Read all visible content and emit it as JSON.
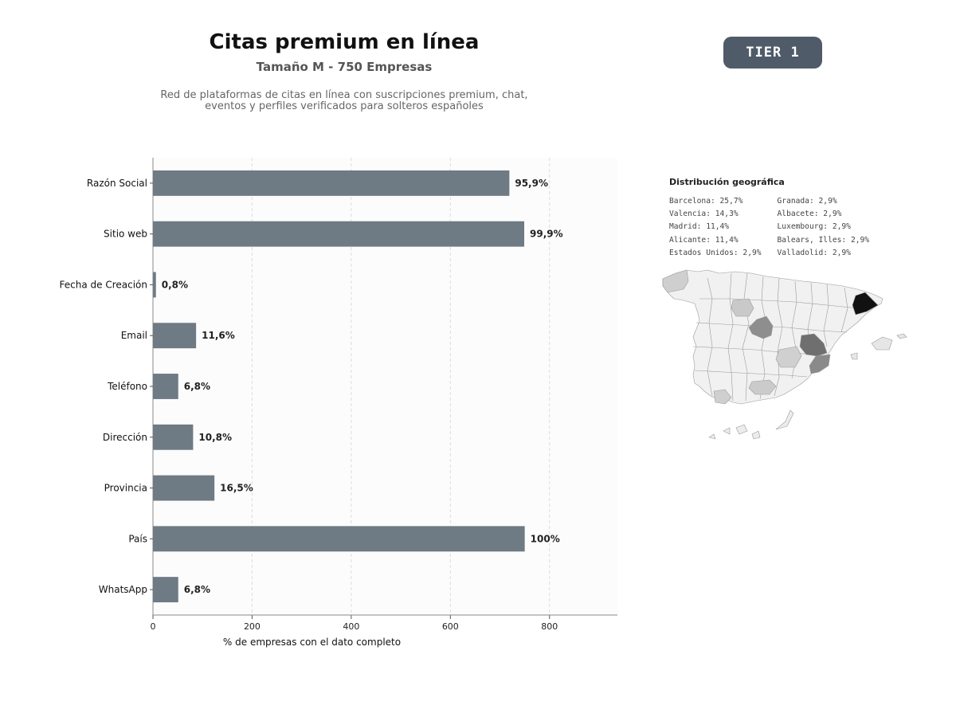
{
  "header": {
    "title": "Citas premium en línea",
    "subtitle": "Tamaño M - 750 Empresas",
    "description": "Red de plataformas de citas en línea con suscripciones premium, chat,\neventos y perfiles verificados para solteros españoles",
    "tier_badge": "TIER 1"
  },
  "chart_data": {
    "type": "bar",
    "orientation": "horizontal",
    "categories": [
      "Razón Social",
      "Sitio web",
      "Fecha de Creación",
      "Email",
      "Teléfono",
      "Dirección",
      "Provincia",
      "País",
      "WhatsApp"
    ],
    "values": [
      719,
      749,
      6,
      87,
      51,
      81,
      124,
      750,
      51
    ],
    "data_labels": [
      "95,9%",
      "99,9%",
      "0,8%",
      "11,6%",
      "6,8%",
      "10,8%",
      "16,5%",
      "100%",
      "6,8%"
    ],
    "xlabel": "% de empresas con el dato completo",
    "ylabel": "",
    "xlim": [
      0,
      937
    ],
    "x_ticks": [
      0,
      200,
      400,
      600,
      800
    ],
    "grid": "vertical dashed",
    "bar_color": "#6e7a84"
  },
  "geo": {
    "title": "Distribución geográfica",
    "columns": [
      [
        "Barcelona: 25,7%",
        "Valencia: 14,3%",
        "Madrid: 11,4%",
        "Alicante: 11,4%",
        "Estados Unidos: 2,9%"
      ],
      [
        "Granada: 2,9%",
        "Albacete: 2,9%",
        "Luxembourg: 2,9%",
        "Balears, Illes: 2,9%",
        "Valladolid: 2,9%"
      ]
    ]
  }
}
